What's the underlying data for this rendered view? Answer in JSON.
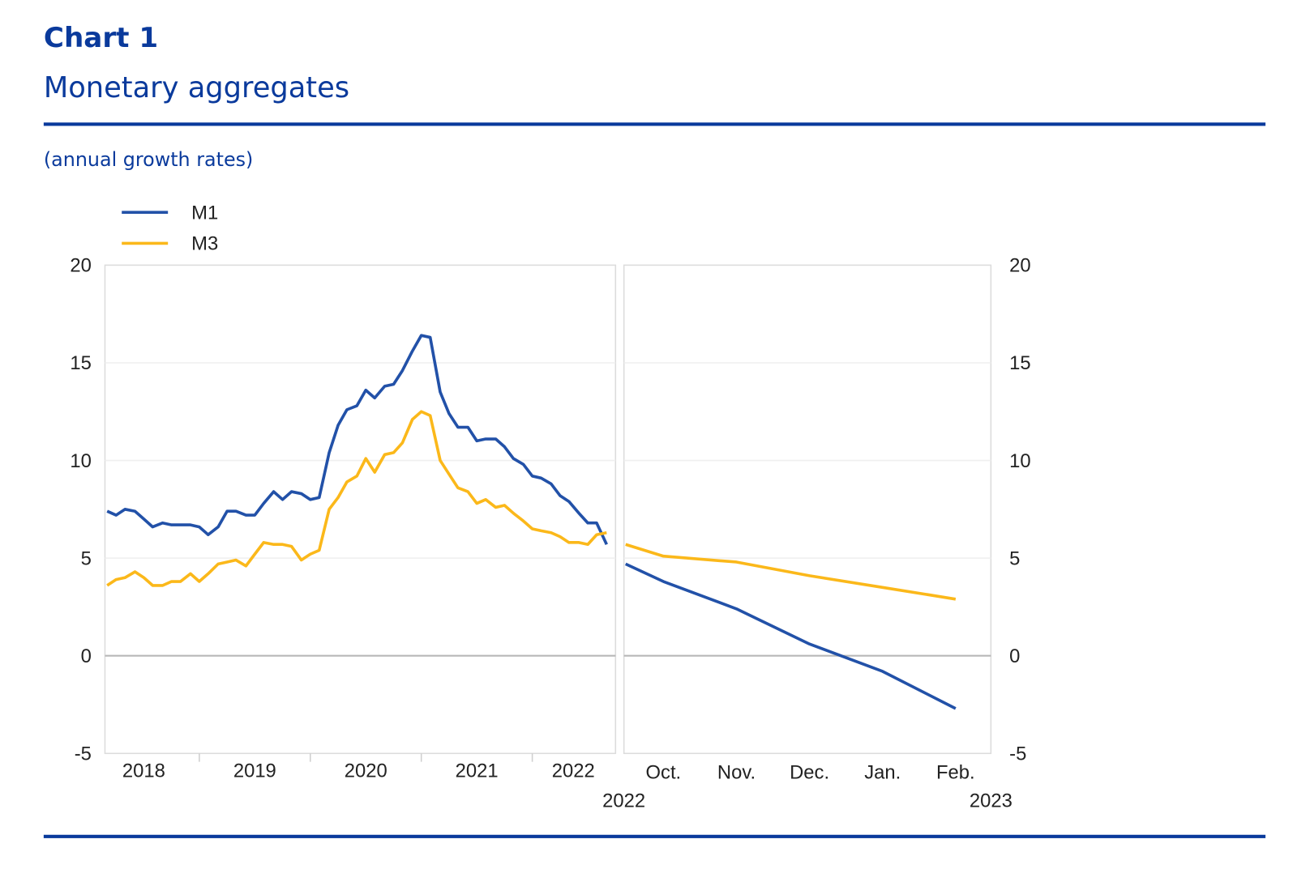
{
  "header": {
    "label": "Chart 1",
    "title": "Monetary aggregates",
    "subtitle": "(annual growth rates)"
  },
  "chart_data": [
    {
      "type": "line",
      "x": [
        2018.17,
        2018.25,
        2018.33,
        2018.42,
        2018.5,
        2018.58,
        2018.67,
        2018.75,
        2018.83,
        2018.92,
        2019,
        2019.08,
        2019.17,
        2019.25,
        2019.33,
        2019.42,
        2019.5,
        2019.58,
        2019.67,
        2019.75,
        2019.83,
        2019.92,
        2020,
        2020.08,
        2020.17,
        2020.25,
        2020.33,
        2020.42,
        2020.5,
        2020.58,
        2020.67,
        2020.75,
        2020.83,
        2020.92,
        2021,
        2021.08,
        2021.17,
        2021.25,
        2021.33,
        2021.42,
        2021.5,
        2021.58,
        2021.67,
        2021.75,
        2021.83,
        2021.92,
        2022,
        2022.08,
        2022.17,
        2022.25,
        2022.33,
        2022.42,
        2022.5,
        2022.58,
        2022.67
      ],
      "series": [
        {
          "name": "M1",
          "color": "#2251a8",
          "values": [
            7.4,
            7.2,
            7.5,
            7.4,
            7.0,
            6.6,
            6.8,
            6.7,
            6.7,
            6.7,
            6.6,
            6.2,
            6.6,
            7.4,
            7.4,
            7.2,
            7.2,
            7.8,
            8.4,
            8.0,
            8.4,
            8.3,
            8.0,
            8.1,
            10.4,
            11.8,
            12.6,
            12.8,
            13.6,
            13.2,
            13.8,
            13.9,
            14.6,
            15.6,
            16.4,
            16.3,
            13.5,
            12.4,
            11.7,
            11.7,
            11.0,
            11.1,
            11.1,
            10.7,
            10.1,
            9.8,
            9.2,
            9.1,
            8.8,
            8.2,
            7.9,
            7.3,
            6.8,
            6.8,
            5.7
          ]
        },
        {
          "name": "M3",
          "color": "#fbb81a",
          "values": [
            3.6,
            3.9,
            4.0,
            4.3,
            4.0,
            3.6,
            3.6,
            3.8,
            3.8,
            4.2,
            3.8,
            4.2,
            4.7,
            4.8,
            4.9,
            4.6,
            5.2,
            5.8,
            5.7,
            5.7,
            5.6,
            4.9,
            5.2,
            5.4,
            7.5,
            8.1,
            8.9,
            9.2,
            10.1,
            9.4,
            10.3,
            10.4,
            10.9,
            12.1,
            12.5,
            12.3,
            10.0,
            9.3,
            8.6,
            8.4,
            7.8,
            8.0,
            7.6,
            7.7,
            7.3,
            6.9,
            6.5,
            6.4,
            6.3,
            6.1,
            5.8,
            5.8,
            5.7,
            6.2,
            6.3
          ]
        }
      ],
      "xlim": [
        2018.15,
        2022.75
      ],
      "xticks": [
        {
          "value": 2018.5,
          "label": "2018"
        },
        {
          "value": 2019.5,
          "label": "2019"
        },
        {
          "value": 2020.5,
          "label": "2020"
        },
        {
          "value": 2021.5,
          "label": "2021"
        },
        {
          "value": 2022.37,
          "label": "2022"
        }
      ],
      "xminor": [
        2019,
        2020,
        2021,
        2022
      ],
      "ylim": [
        -5,
        20
      ],
      "yticks": [
        -5,
        0,
        5,
        10,
        15,
        20
      ],
      "yaxis_side": "left",
      "grid": true,
      "legend": "top-left"
    },
    {
      "type": "line",
      "categories": [
        null,
        "Oct.",
        "Nov.",
        "Dec.",
        "Jan.",
        "Feb."
      ],
      "year_labels": [
        "2022",
        "2023"
      ],
      "series": [
        {
          "name": "M1",
          "color": "#2251a8",
          "values": [
            4.7,
            3.8,
            2.4,
            0.6,
            -0.8,
            -2.7
          ]
        },
        {
          "name": "M3",
          "color": "#fbb81a",
          "values": [
            5.7,
            5.1,
            4.8,
            4.1,
            3.5,
            2.9
          ]
        }
      ],
      "ylim": [
        -5,
        20
      ],
      "yticks": [
        -5,
        0,
        5,
        10,
        15,
        20
      ],
      "yaxis_side": "right",
      "grid": true
    }
  ]
}
